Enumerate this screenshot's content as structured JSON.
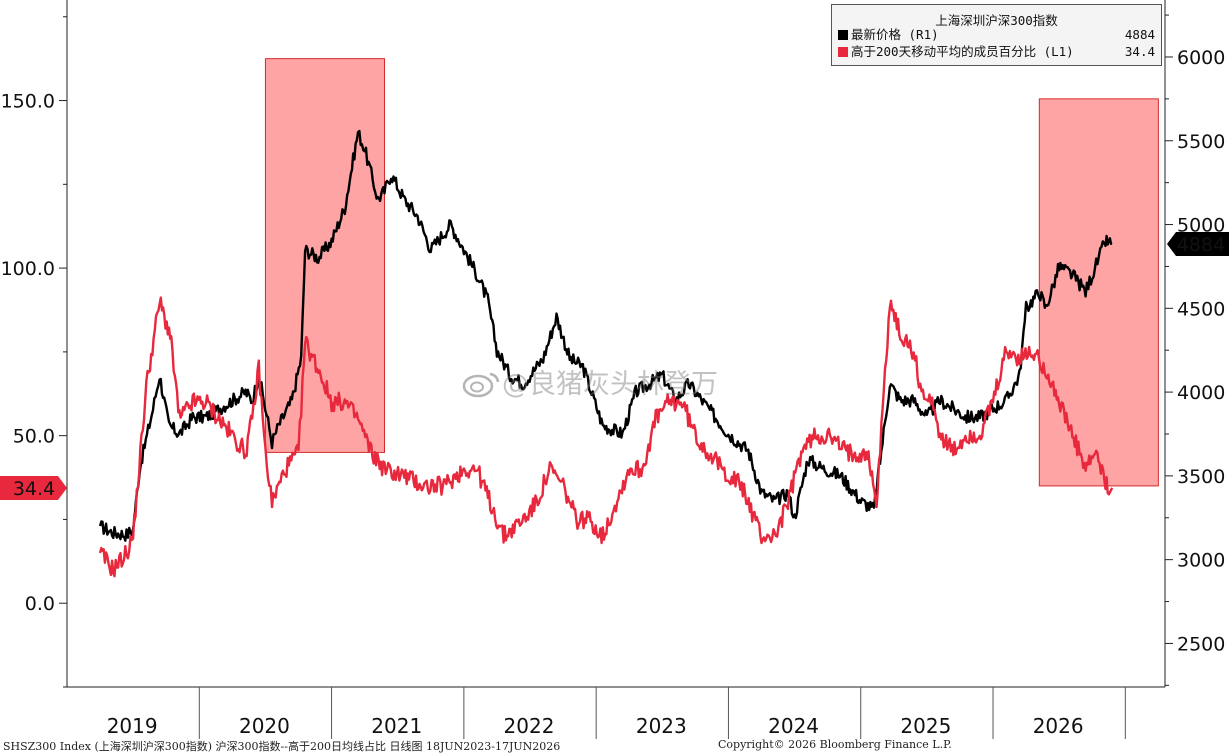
{
  "chart_data": {
    "type": "line",
    "x_labels": [
      "2019",
      "2020",
      "2021",
      "2022",
      "2023",
      "2024",
      "2025",
      "2026"
    ],
    "left_axis": {
      "ticks": [
        "150.0",
        "100.0",
        "50.0",
        "0.0"
      ],
      "values": [
        150,
        100,
        50,
        0
      ],
      "ylim": [
        -25,
        180
      ]
    },
    "right_axis": {
      "ticks": [
        "6000",
        "5500",
        "5000",
        "4500",
        "4000",
        "3500",
        "3000",
        "2500"
      ],
      "values": [
        6000,
        5500,
        5000,
        4500,
        4000,
        3500,
        3000,
        2500
      ],
      "ylim": [
        2240,
        6340
      ]
    },
    "highlight_periods": [
      {
        "x_start": 2020.0,
        "x_end": 2020.9
      },
      {
        "x_start": 2025.85,
        "x_end": 2026.75
      }
    ],
    "series": [
      {
        "name": "最新价格 (R1)",
        "axis": "right",
        "color": "#000000",
        "last_value": "4884",
        "points": [
          [
            2018.75,
            3200
          ],
          [
            2018.85,
            3160
          ],
          [
            2018.95,
            3150
          ],
          [
            2019.0,
            3180
          ],
          [
            2019.05,
            3550
          ],
          [
            2019.15,
            3900
          ],
          [
            2019.2,
            4100
          ],
          [
            2019.27,
            3800
          ],
          [
            2019.35,
            3750
          ],
          [
            2019.45,
            3850
          ],
          [
            2019.55,
            3850
          ],
          [
            2019.65,
            3900
          ],
          [
            2019.75,
            3950
          ],
          [
            2019.85,
            4000
          ],
          [
            2019.9,
            3950
          ],
          [
            2019.95,
            4100
          ],
          [
            2020.0,
            3900
          ],
          [
            2020.05,
            3700
          ],
          [
            2020.1,
            3800
          ],
          [
            2020.2,
            3950
          ],
          [
            2020.27,
            4200
          ],
          [
            2020.3,
            4850
          ],
          [
            2020.4,
            4800
          ],
          [
            2020.5,
            4900
          ],
          [
            2020.6,
            5100
          ],
          [
            2020.7,
            5550
          ],
          [
            2020.75,
            5450
          ],
          [
            2020.8,
            5300
          ],
          [
            2020.85,
            5150
          ],
          [
            2020.9,
            5200
          ],
          [
            2020.95,
            5300
          ],
          [
            2021.05,
            5150
          ],
          [
            2021.15,
            5050
          ],
          [
            2021.25,
            4850
          ],
          [
            2021.3,
            4900
          ],
          [
            2021.4,
            5000
          ],
          [
            2021.5,
            4850
          ],
          [
            2021.6,
            4700
          ],
          [
            2021.68,
            4550
          ],
          [
            2021.75,
            4250
          ],
          [
            2021.85,
            4100
          ],
          [
            2021.95,
            4050
          ],
          [
            2022.1,
            4200
          ],
          [
            2022.2,
            4450
          ],
          [
            2022.3,
            4200
          ],
          [
            2022.4,
            4150
          ],
          [
            2022.55,
            3800
          ],
          [
            2022.7,
            3750
          ],
          [
            2022.8,
            4000
          ],
          [
            2022.9,
            4050
          ],
          [
            2023.0,
            4100
          ],
          [
            2023.1,
            3950
          ],
          [
            2023.2,
            4050
          ],
          [
            2023.35,
            3900
          ],
          [
            2023.5,
            3750
          ],
          [
            2023.65,
            3650
          ],
          [
            2023.75,
            3400
          ],
          [
            2023.85,
            3350
          ],
          [
            2023.95,
            3400
          ],
          [
            2024.0,
            3250
          ],
          [
            2024.1,
            3600
          ],
          [
            2024.2,
            3550
          ],
          [
            2024.35,
            3500
          ],
          [
            2024.5,
            3350
          ],
          [
            2024.6,
            3300
          ],
          [
            2024.72,
            4050
          ],
          [
            2024.8,
            3950
          ],
          [
            2024.9,
            3950
          ],
          [
            2025.0,
            3850
          ],
          [
            2025.1,
            3950
          ],
          [
            2025.2,
            3900
          ],
          [
            2025.3,
            3850
          ],
          [
            2025.4,
            3850
          ],
          [
            2025.5,
            3900
          ],
          [
            2025.6,
            3950
          ],
          [
            2025.7,
            4100
          ],
          [
            2025.75,
            4500
          ],
          [
            2025.85,
            4600
          ],
          [
            2025.9,
            4500
          ],
          [
            2026.0,
            4750
          ],
          [
            2026.1,
            4700
          ],
          [
            2026.2,
            4600
          ],
          [
            2026.25,
            4700
          ],
          [
            2026.3,
            4800
          ],
          [
            2026.35,
            4900
          ],
          [
            2026.4,
            4884
          ]
        ]
      },
      {
        "name": "高于200天移动平均的成员百分比 (L1)",
        "axis": "left",
        "color": "#e8283c",
        "last_value": "34.4",
        "points": [
          [
            2018.75,
            15
          ],
          [
            2018.85,
            10
          ],
          [
            2018.95,
            15
          ],
          [
            2019.0,
            20
          ],
          [
            2019.1,
            65
          ],
          [
            2019.2,
            90
          ],
          [
            2019.28,
            80
          ],
          [
            2019.35,
            55
          ],
          [
            2019.45,
            60
          ],
          [
            2019.55,
            60
          ],
          [
            2019.65,
            55
          ],
          [
            2019.75,
            50
          ],
          [
            2019.85,
            45
          ],
          [
            2019.9,
            55
          ],
          [
            2019.95,
            70
          ],
          [
            2020.0,
            45
          ],
          [
            2020.05,
            30
          ],
          [
            2020.15,
            40
          ],
          [
            2020.25,
            45
          ],
          [
            2020.3,
            78
          ],
          [
            2020.4,
            70
          ],
          [
            2020.5,
            60
          ],
          [
            2020.6,
            60
          ],
          [
            2020.7,
            55
          ],
          [
            2020.8,
            45
          ],
          [
            2020.9,
            40
          ],
          [
            2021.05,
            38
          ],
          [
            2021.2,
            35
          ],
          [
            2021.35,
            35
          ],
          [
            2021.5,
            40
          ],
          [
            2021.6,
            40
          ],
          [
            2021.7,
            30
          ],
          [
            2021.8,
            20
          ],
          [
            2021.95,
            25
          ],
          [
            2022.05,
            30
          ],
          [
            2022.15,
            40
          ],
          [
            2022.25,
            35
          ],
          [
            2022.35,
            25
          ],
          [
            2022.45,
            25
          ],
          [
            2022.55,
            20
          ],
          [
            2022.65,
            30
          ],
          [
            2022.75,
            40
          ],
          [
            2022.85,
            40
          ],
          [
            2022.95,
            55
          ],
          [
            2023.05,
            60
          ],
          [
            2023.15,
            60
          ],
          [
            2023.25,
            50
          ],
          [
            2023.35,
            45
          ],
          [
            2023.45,
            40
          ],
          [
            2023.6,
            35
          ],
          [
            2023.75,
            20
          ],
          [
            2023.85,
            20
          ],
          [
            2023.95,
            30
          ],
          [
            2024.05,
            45
          ],
          [
            2024.15,
            50
          ],
          [
            2024.25,
            50
          ],
          [
            2024.4,
            45
          ],
          [
            2024.55,
            45
          ],
          [
            2024.62,
            30
          ],
          [
            2024.72,
            90
          ],
          [
            2024.8,
            80
          ],
          [
            2024.9,
            75
          ],
          [
            2024.95,
            65
          ],
          [
            2025.0,
            60
          ],
          [
            2025.05,
            60
          ],
          [
            2025.1,
            50
          ],
          [
            2025.2,
            45
          ],
          [
            2025.3,
            50
          ],
          [
            2025.4,
            50
          ],
          [
            2025.5,
            60
          ],
          [
            2025.6,
            75
          ],
          [
            2025.7,
            73
          ],
          [
            2025.8,
            75
          ],
          [
            2025.9,
            70
          ],
          [
            2026.0,
            60
          ],
          [
            2026.1,
            50
          ],
          [
            2026.2,
            40
          ],
          [
            2026.28,
            45
          ],
          [
            2026.35,
            35
          ],
          [
            2026.4,
            34.4
          ]
        ]
      }
    ]
  },
  "legend": {
    "title": "上海深圳沪深300指数",
    "rows": [
      {
        "label": "最新价格 (R1)",
        "value": "4884",
        "color": "#000000"
      },
      {
        "label": "高于200天移动平均的成员百分比 (L1)",
        "value": "34.4",
        "color": "#e8283c"
      }
    ]
  },
  "tags": {
    "left": "34.4",
    "right": "4884"
  },
  "footer": {
    "left": "SHSZ300 Index (上海深圳沪深300指数) 沪深300指数--高于200日均线占比 日线图 18JUN2023-17JUN2026",
    "right": "Copyright© 2026 Bloomberg Finance L.P."
  },
  "watermark": "@良猪灰头林登万"
}
